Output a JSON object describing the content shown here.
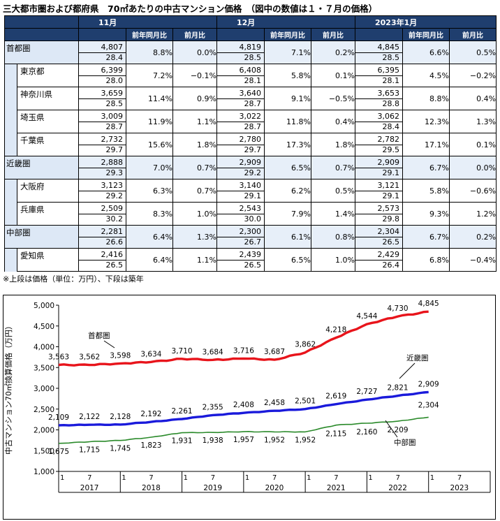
{
  "title": "三大都市圏および都府県　70㎡あたりの中古マンション価格　（図中の数値は１・７月の価格）",
  "table": {
    "months": [
      "11月",
      "12月",
      "2023年1月"
    ],
    "sub_headers": [
      "前年同月比",
      "前月比"
    ],
    "rows": [
      {
        "name": "首都圏",
        "type": "region",
        "cells": [
          [
            "4,807",
            "28.4",
            "8.8%",
            "0.0%"
          ],
          [
            "4,819",
            "28.5",
            "7.1%",
            "0.2%"
          ],
          [
            "4,845",
            "28.5",
            "6.6%",
            "0.5%"
          ]
        ]
      },
      {
        "name": "東京都",
        "type": "pref",
        "cells": [
          [
            "6,399",
            "28.0",
            "7.2%",
            "−0.1%"
          ],
          [
            "6,408",
            "28.1",
            "5.8%",
            "0.1%"
          ],
          [
            "6,395",
            "28.1",
            "4.5%",
            "−0.2%"
          ]
        ]
      },
      {
        "name": "神奈川県",
        "type": "pref",
        "cells": [
          [
            "3,659",
            "28.5",
            "11.4%",
            "0.9%"
          ],
          [
            "3,640",
            "28.7",
            "9.1%",
            "−0.5%"
          ],
          [
            "3,653",
            "28.8",
            "8.8%",
            "0.4%"
          ]
        ]
      },
      {
        "name": "埼玉県",
        "type": "pref",
        "cells": [
          [
            "3,009",
            "28.7",
            "11.9%",
            "1.1%"
          ],
          [
            "3,022",
            "28.7",
            "11.8%",
            "0.4%"
          ],
          [
            "3,062",
            "28.4",
            "12.3%",
            "1.3%"
          ]
        ]
      },
      {
        "name": "千葉県",
        "type": "pref",
        "cells": [
          [
            "2,732",
            "29.7",
            "15.6%",
            "1.8%"
          ],
          [
            "2,780",
            "29.7",
            "17.3%",
            "1.8%"
          ],
          [
            "2,782",
            "29.5",
            "17.1%",
            "0.1%"
          ]
        ]
      },
      {
        "name": "近畿圏",
        "type": "region",
        "cells": [
          [
            "2,888",
            "29.3",
            "7.0%",
            "0.7%"
          ],
          [
            "2,909",
            "29.2",
            "6.5%",
            "0.7%"
          ],
          [
            "2,909",
            "29.1",
            "6.7%",
            "0.0%"
          ]
        ]
      },
      {
        "name": "大阪府",
        "type": "pref",
        "cells": [
          [
            "3,123",
            "29.2",
            "6.3%",
            "0.7%"
          ],
          [
            "3,140",
            "29.1",
            "6.2%",
            "0.5%"
          ],
          [
            "3,121",
            "29.1",
            "5.8%",
            "−0.6%"
          ]
        ]
      },
      {
        "name": "兵庫県",
        "type": "pref",
        "cells": [
          [
            "2,509",
            "30.2",
            "8.3%",
            "1.0%"
          ],
          [
            "2,543",
            "30.0",
            "7.9%",
            "1.4%"
          ],
          [
            "2,573",
            "29.8",
            "9.3%",
            "1.2%"
          ]
        ]
      },
      {
        "name": "中部圏",
        "type": "region",
        "cells": [
          [
            "2,281",
            "26.6",
            "6.4%",
            "1.3%"
          ],
          [
            "2,300",
            "26.7",
            "6.1%",
            "0.8%"
          ],
          [
            "2,304",
            "26.5",
            "6.7%",
            "0.2%"
          ]
        ]
      },
      {
        "name": "愛知県",
        "type": "pref",
        "cells": [
          [
            "2,416",
            "26.5",
            "6.4%",
            "1.1%"
          ],
          [
            "2,439",
            "26.5",
            "6.5%",
            "1.0%"
          ],
          [
            "2,429",
            "26.4",
            "6.8%",
            "−0.4%"
          ]
        ]
      }
    ]
  },
  "note": "※上段は価格（単位：万円）、下段は築年",
  "chart_data": {
    "type": "line",
    "ylabel": "中古マンション70㎡換算価格（万円）",
    "ylim": [
      1000,
      5000
    ],
    "yticks": [
      "1,000",
      "1,500",
      "2,000",
      "2,500",
      "3,000",
      "3,500",
      "4,000",
      "4,500",
      "5,000"
    ],
    "x_years": [
      "2017",
      "2018",
      "2019",
      "2020",
      "2021",
      "2022",
      "2023"
    ],
    "x_month_ticks": [
      "1",
      "7"
    ],
    "x_start": "2017-01",
    "x_end": "2023-12",
    "series": [
      {
        "name": "首都圏",
        "color": "#e8141b",
        "points": [
          [
            "2017-01",
            3563
          ],
          [
            "2017-07",
            3562
          ],
          [
            "2018-01",
            3598
          ],
          [
            "2018-07",
            3634
          ],
          [
            "2019-01",
            3710
          ],
          [
            "2019-07",
            3684
          ],
          [
            "2020-01",
            3716
          ],
          [
            "2020-07",
            3687
          ],
          [
            "2021-01",
            3862
          ],
          [
            "2021-07",
            4218
          ],
          [
            "2022-01",
            4544
          ],
          [
            "2022-07",
            4730
          ],
          [
            "2023-01",
            4845
          ]
        ],
        "labels": [
          "3,563",
          "3,562",
          "3,598",
          "3,634",
          "3,710",
          "3,684",
          "3,716",
          "3,687",
          "3,862",
          "4,218",
          "4,544",
          "4,730",
          "4,845"
        ]
      },
      {
        "name": "近畿圏",
        "color": "#1a1adb",
        "points": [
          [
            "2017-01",
            2109
          ],
          [
            "2017-07",
            2122
          ],
          [
            "2018-01",
            2128
          ],
          [
            "2018-07",
            2192
          ],
          [
            "2019-01",
            2261
          ],
          [
            "2019-07",
            2355
          ],
          [
            "2020-01",
            2408
          ],
          [
            "2020-07",
            2458
          ],
          [
            "2021-01",
            2501
          ],
          [
            "2021-07",
            2619
          ],
          [
            "2022-01",
            2727
          ],
          [
            "2022-07",
            2821
          ],
          [
            "2023-01",
            2909
          ]
        ],
        "labels": [
          "2,109",
          "2,122",
          "2,128",
          "2,192",
          "2,261",
          "2,355",
          "2,408",
          "2,458",
          "2,501",
          "2,619",
          "2,727",
          "2,821",
          "2,909"
        ]
      },
      {
        "name": "中部圏",
        "color": "#2a8a2a",
        "points": [
          [
            "2017-01",
            1675
          ],
          [
            "2017-07",
            1715
          ],
          [
            "2018-01",
            1745
          ],
          [
            "2018-07",
            1823
          ],
          [
            "2019-01",
            1931
          ],
          [
            "2019-07",
            1938
          ],
          [
            "2020-01",
            1957
          ],
          [
            "2020-07",
            1952
          ],
          [
            "2021-01",
            1952
          ],
          [
            "2021-07",
            2115
          ],
          [
            "2022-01",
            2160
          ],
          [
            "2022-07",
            2209
          ],
          [
            "2023-01",
            2304
          ]
        ],
        "labels": [
          "1,675",
          "1,715",
          "1,745",
          "1,823",
          "1,931",
          "1,938",
          "1,957",
          "1,952",
          "1,952",
          "2,115",
          "2,160",
          "2,209",
          "2,304"
        ]
      }
    ]
  }
}
